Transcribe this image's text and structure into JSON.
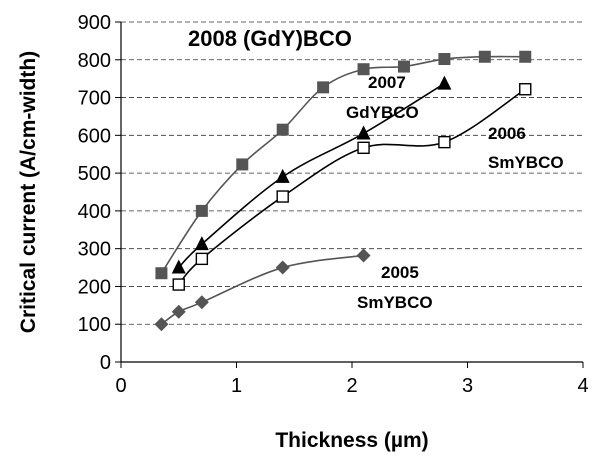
{
  "chart_data": {
    "type": "scatter",
    "xlabel": "Thickness (µm)",
    "ylabel": "Critical current (A/cm-width)",
    "xlim": [
      0,
      4
    ],
    "ylim": [
      0,
      900
    ],
    "xticks": [
      0,
      1,
      2,
      3,
      4
    ],
    "yticks": [
      0,
      100,
      200,
      300,
      400,
      500,
      600,
      700,
      800,
      900
    ],
    "grid": "horizontal dashed",
    "series": [
      {
        "marker": "filled-square",
        "color": "#555555",
        "x": [
          0.35,
          0.7,
          1.05,
          1.4,
          1.75,
          2.1,
          2.45,
          2.8,
          3.15,
          3.5
        ],
        "y": [
          235,
          400,
          523,
          615,
          727,
          775,
          782,
          802,
          808,
          808
        ]
      },
      {
        "marker": "filled-triangle",
        "color": "#000000",
        "x": [
          0.5,
          0.7,
          1.4,
          2.1,
          2.8
        ],
        "y": [
          250,
          312,
          490,
          605,
          737
        ]
      },
      {
        "marker": "open-square",
        "color": "#000000",
        "x": [
          0.5,
          0.7,
          1.4,
          2.1,
          2.8,
          3.5
        ],
        "y": [
          205,
          273,
          438,
          567,
          582,
          722
        ]
      },
      {
        "marker": "filled-diamond",
        "color": "#555555",
        "x": [
          0.35,
          0.5,
          0.7,
          1.4,
          2.1
        ],
        "y": [
          100,
          133,
          158,
          250,
          282
        ]
      }
    ],
    "annotations": [
      {
        "text": "2008 (GdY)BCO",
        "color": "#666666"
      },
      {
        "text": "2007"
      },
      {
        "text": "GdYBCO"
      },
      {
        "text": "2006"
      },
      {
        "text": "SmYBCO"
      },
      {
        "text": "2005"
      },
      {
        "text": "SmYBCO"
      }
    ]
  }
}
